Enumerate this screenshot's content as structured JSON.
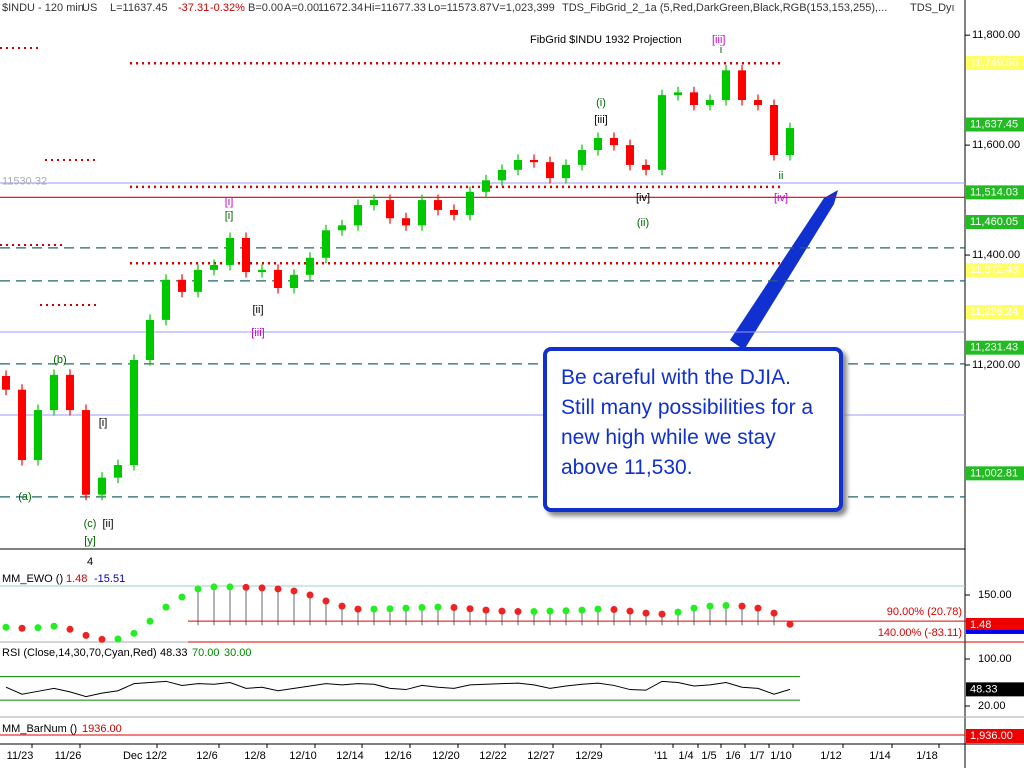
{
  "chart_data": {
    "type": "candlestick",
    "header": [
      "$INDU - 120 min",
      "US",
      "L=11637.45",
      "-37.31",
      "-0.32%",
      "B=0.00",
      "A=0.00",
      "11672.34",
      "Hi=11677.33",
      "Lo=11573.87",
      "V=1,023,399",
      "TDS_FibGrid_2_1a (5,Red,DarkGreen,Black,RGB(153,153,255),...",
      "TDS_Dyı"
    ],
    "title": "FibGrid $INDU 1932 Projection",
    "title_tag": "[iii]",
    "up_color": "#00c800",
    "down_color": "#ff0000",
    "ylim": [
      10867,
      11864
    ],
    "yticks": [
      {
        "value": 11800,
        "label": "11,800.00"
      },
      {
        "value": 11600,
        "label": "11,600.00"
      },
      {
        "value": 11400,
        "label": "11,400.00"
      },
      {
        "value": 11200,
        "label": "11,200.00"
      }
    ],
    "open": [
      11180,
      11155,
      11027,
      11118,
      11182,
      11118,
      10964,
      10995,
      11018,
      11209,
      11282,
      11355,
      11333,
      11373,
      11382,
      11431,
      11369,
      11373,
      11340,
      11364,
      11395,
      11445,
      11454,
      11491,
      11500,
      11467,
      11454,
      11500,
      11482,
      11473,
      11515,
      11536,
      11555,
      11573,
      11569,
      11540,
      11564,
      11591,
      11613,
      11600,
      11564,
      11555,
      11691,
      11696,
      11673,
      11682,
      11736,
      11682,
      11673,
      11582
    ],
    "high": [
      11190,
      11165,
      11128,
      11192,
      11192,
      11128,
      11005,
      11028,
      11219,
      11292,
      11365,
      11365,
      11383,
      11392,
      11441,
      11441,
      11383,
      11383,
      11374,
      11405,
      11455,
      11464,
      11501,
      11510,
      11510,
      11477,
      11510,
      11510,
      11492,
      11525,
      11546,
      11565,
      11583,
      11583,
      11579,
      11574,
      11601,
      11623,
      11623,
      11610,
      11574,
      11701,
      11706,
      11706,
      11692,
      11746,
      11746,
      11692,
      11683,
      11641
    ],
    "low": [
      11145,
      11017,
      11017,
      11108,
      11108,
      10954,
      10954,
      10985,
      11008,
      11199,
      11272,
      11323,
      11323,
      11363,
      11372,
      11359,
      11359,
      11330,
      11330,
      11354,
      11385,
      11435,
      11444,
      11481,
      11457,
      11444,
      11444,
      11472,
      11463,
      11463,
      11505,
      11526,
      11545,
      11559,
      11530,
      11530,
      11554,
      11581,
      11590,
      11554,
      11545,
      11545,
      11681,
      11663,
      11663,
      11672,
      11672,
      11663,
      11572,
      11572
    ],
    "close": [
      11155,
      11027,
      11118,
      11182,
      11118,
      10964,
      10995,
      11018,
      11209,
      11282,
      11355,
      11333,
      11373,
      11382,
      11431,
      11369,
      11373,
      11340,
      11364,
      11395,
      11445,
      11454,
      11491,
      11500,
      11467,
      11454,
      11500,
      11482,
      11473,
      11515,
      11536,
      11555,
      11573,
      11569,
      11540,
      11564,
      11591,
      11613,
      11600,
      11564,
      11555,
      11691,
      11696,
      11673,
      11682,
      11736,
      11682,
      11673,
      11582,
      11631
    ],
    "levels": [
      {
        "value": 11749,
        "style": "dotted-red"
      },
      {
        "value": 11524,
        "style": "dotted-red"
      },
      {
        "value": 11385,
        "style": "dotted-red"
      },
      {
        "value": 11505,
        "style": "solid-red"
      },
      {
        "value": 11531,
        "style": "blue"
      },
      {
        "value": 11260,
        "style": "blue"
      },
      {
        "value": 11109,
        "style": "blue"
      },
      {
        "value": 11413,
        "style": "dashed"
      },
      {
        "value": 11353,
        "style": "dashed"
      },
      {
        "value": 11202,
        "style": "dashed"
      },
      {
        "value": 10960,
        "style": "dashed"
      }
    ],
    "price_boxes": [
      {
        "value": 11749.56,
        "label": "11,749.56",
        "color": "#ffff66"
      },
      {
        "value": 11637.45,
        "label": "11,637.45",
        "color": "#22bb22"
      },
      {
        "value": 11514.03,
        "label": "11,514.03",
        "color": "#22bb22"
      },
      {
        "value": 11460.05,
        "label": "11,460.05",
        "color": "#22bb22"
      },
      {
        "value": 11372.43,
        "label": "11,372.43",
        "color": "#ffff66"
      },
      {
        "value": 11296.24,
        "label": "11,296.24",
        "color": "#ffff66"
      },
      {
        "value": 11231.43,
        "label": "11,231.43",
        "color": "#22bb22"
      },
      {
        "value": 11002.81,
        "label": "11,002.81",
        "color": "#22bb22"
      }
    ],
    "left_level": {
      "value": 11530.32,
      "label": "11530.32"
    },
    "wave_labels": [
      {
        "text": "(a)",
        "color": "#006600"
      },
      {
        "text": "(b)",
        "color": "#006600"
      },
      {
        "text": "[i]",
        "color": "#000000"
      },
      {
        "text": "(c)",
        "color": "#006600"
      },
      {
        "text": "[ii]",
        "color": "#000000"
      },
      {
        "text": "[y]",
        "color": "#006600"
      },
      {
        "text": "[i]",
        "color": "#cc00cc"
      },
      {
        "text": "[i]",
        "color": "#006600"
      },
      {
        "text": "[ii]",
        "color": "#000000"
      },
      {
        "text": "[iii]",
        "color": "#cc00cc"
      },
      {
        "text": "(i)",
        "color": "#006600"
      },
      {
        "text": "[iii]",
        "color": "#000000"
      },
      {
        "text": "[iv]",
        "color": "#000000"
      },
      {
        "text": "(ii)",
        "color": "#006600"
      },
      {
        "text": "i",
        "color": "#006600"
      },
      {
        "text": "ii",
        "color": "#006600"
      },
      {
        "text": "[iv]",
        "color": "#cc00cc"
      },
      {
        "text": "4",
        "color": "#000000"
      }
    ],
    "annotation": [
      "Be careful with the DJIA.",
      "Still many possibilities for a",
      "new high while we  stay",
      "above 11,530."
    ],
    "dates": [
      "11/23",
      "11/26",
      "Dec 12/2",
      "12/6",
      "12/8",
      "12/10",
      "12/14",
      "12/16",
      "12/20",
      "12/22",
      "12/27",
      "12/29",
      "'11",
      "1/4",
      "1/5",
      "1/6",
      "1/7",
      "1/10",
      "1/12",
      "1/14",
      "1/18"
    ],
    "ewo": {
      "labels": [
        "MM_EWO ()",
        "1.48",
        "-15.51"
      ],
      "ylim": [
        -83,
        264
      ],
      "yticks": [
        {
          "value": 150,
          "label": "150.00"
        }
      ],
      "last": {
        "value": 1.48,
        "label": "1.48"
      },
      "bands": [
        {
          "value": 20.78,
          "label": "90.00% (20.78)"
        },
        {
          "value": -83.11,
          "label": "140.00% (-83.11)"
        }
      ],
      "values": [
        -10,
        -15,
        -12,
        -5,
        -20,
        -50,
        -70,
        -68,
        -40,
        20,
        90,
        140,
        180,
        190,
        190,
        188,
        185,
        180,
        170,
        150,
        120,
        95,
        80,
        80,
        82,
        85,
        88,
        90,
        88,
        82,
        75,
        70,
        68,
        68,
        70,
        72,
        75,
        80,
        78,
        70,
        60,
        55,
        65,
        85,
        95,
        98,
        95,
        85,
        60,
        5
      ]
    },
    "rsi": {
      "labels": [
        "RSI (Close,14,30,70,Cyan,Red)",
        "48.33",
        "70.00",
        "30.00"
      ],
      "ylim": [
        3,
        118.7
      ],
      "yticks": [
        {
          "value": 100,
          "label": "100.00"
        },
        {
          "value": 20,
          "label": "20.00"
        }
      ],
      "last": {
        "value": 48.33,
        "label": "48.33"
      },
      "bounds": [
        70,
        30
      ],
      "values": [
        52,
        40,
        45,
        50,
        44,
        36,
        42,
        46,
        58,
        60,
        62,
        55,
        58,
        57,
        60,
        50,
        52,
        46,
        50,
        54,
        58,
        56,
        58,
        57,
        50,
        48,
        55,
        52,
        50,
        56,
        57,
        58,
        59,
        56,
        50,
        54,
        57,
        59,
        55,
        48,
        47,
        62,
        60,
        54,
        56,
        60,
        52,
        50,
        40,
        48.33
      ]
    },
    "barnum": {
      "labels": [
        "MM_BarNum ()",
        "1936.00"
      ],
      "last": {
        "value": 1936,
        "label": "1,936.00"
      }
    }
  }
}
